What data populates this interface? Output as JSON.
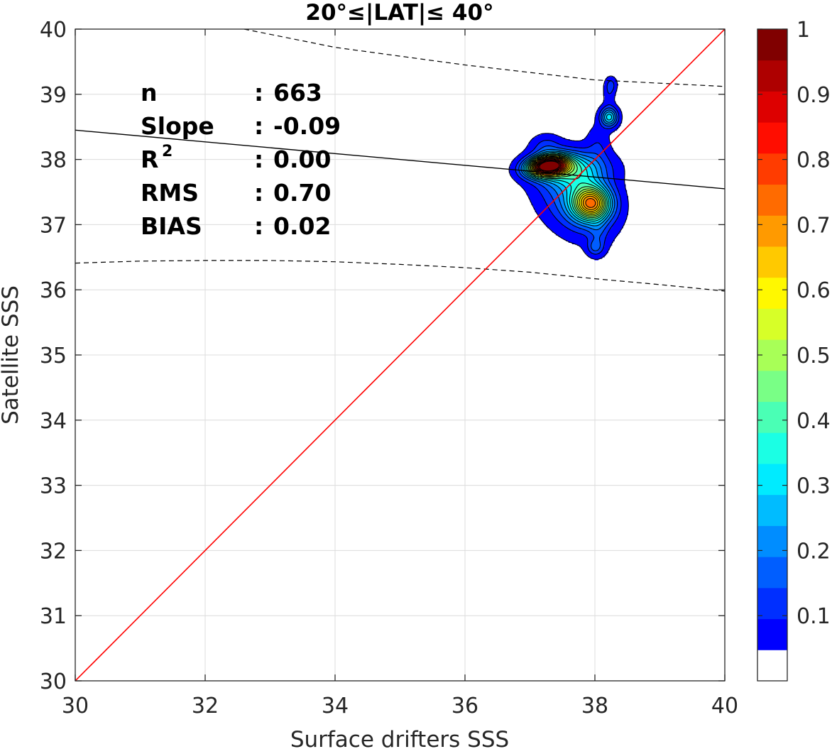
{
  "chart_data": {
    "type": "heatmap",
    "title": "20°≤|LAT|≤ 40°",
    "xlabel": "Surface drifters SSS",
    "ylabel": "Satellite SSS",
    "xlim": [
      30,
      40
    ],
    "ylim": [
      30,
      40
    ],
    "x_ticks": [
      "30",
      "32",
      "34",
      "36",
      "38",
      "40"
    ],
    "y_ticks": [
      "30",
      "31",
      "32",
      "33",
      "34",
      "35",
      "36",
      "37",
      "38",
      "39",
      "40"
    ],
    "grid": true,
    "stats": [
      {
        "label": "n",
        "sep": ":",
        "value": "663"
      },
      {
        "label": "Slope",
        "sep": ":",
        "value": "-0.09"
      },
      {
        "label": "R",
        "sup": "2",
        "sep": ":",
        "value": "0.00"
      },
      {
        "label": "RMS",
        "sep": ":",
        "value": "0.70"
      },
      {
        "label": "BIAS",
        "sep": ":",
        "value": "0.02"
      }
    ],
    "identity_line": {
      "x": [
        30,
        40
      ],
      "y": [
        30,
        40
      ],
      "color": "#ff0000"
    },
    "regression_line": {
      "x": [
        30,
        40
      ],
      "y": [
        38.45,
        37.55
      ],
      "color": "#000000"
    },
    "confidence_upper": {
      "x": [
        32.6,
        34,
        36,
        38,
        40
      ],
      "y": [
        40.0,
        39.72,
        39.45,
        39.22,
        39.12
      ]
    },
    "confidence_lower": {
      "x": [
        30,
        31,
        32,
        33,
        34,
        35,
        36,
        37,
        38,
        39,
        40
      ],
      "y": [
        36.41,
        36.44,
        36.45,
        36.45,
        36.43,
        36.39,
        36.34,
        36.27,
        36.17,
        36.08,
        35.98
      ]
    },
    "density_peaks": [
      {
        "x": 37.27,
        "y": 37.9,
        "value": 1.0
      },
      {
        "x": 37.95,
        "y": 37.33,
        "value": 0.62
      },
      {
        "x": 38.22,
        "y": 38.65,
        "value": 0.3
      },
      {
        "x": 38.0,
        "y": 36.65,
        "value": 0.1
      },
      {
        "x": 38.25,
        "y": 39.15,
        "value": 0.08
      }
    ],
    "colorbar": {
      "ticks": [
        "0.1",
        "0.2",
        "0.3",
        "0.4",
        "0.5",
        "0.6",
        "0.7",
        "0.8",
        "0.9",
        "1"
      ],
      "range": [
        0,
        1
      ],
      "levels": 20,
      "colormap": "jet",
      "lowest_color": "#ffffff"
    }
  }
}
